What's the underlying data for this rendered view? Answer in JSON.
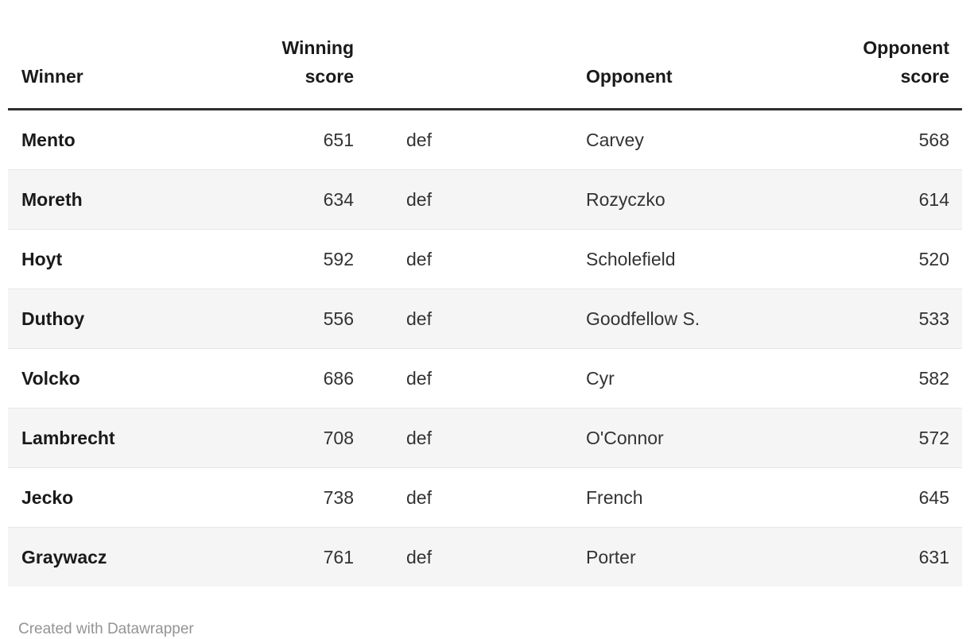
{
  "chart_data": {
    "type": "table",
    "title": "",
    "columns": [
      "Winner",
      "Winning score",
      "",
      "Opponent",
      "Opponent score"
    ],
    "rows": [
      [
        "Mento",
        651,
        "def",
        "Carvey",
        568
      ],
      [
        "Moreth",
        634,
        "def",
        "Rozyczko",
        614
      ],
      [
        "Hoyt",
        592,
        "def",
        "Scholefield",
        520
      ],
      [
        "Duthoy",
        556,
        "def",
        "Goodfellow S.",
        533
      ],
      [
        "Volcko",
        686,
        "def",
        "Cyr",
        582
      ],
      [
        "Lambrecht",
        708,
        "def",
        "O'Connor",
        572
      ],
      [
        "Jecko",
        738,
        "def",
        "French",
        645
      ],
      [
        "Graywacz",
        761,
        "def",
        "Porter",
        631
      ]
    ],
    "layout_hints": {
      "zebra_striping": true,
      "striped_rows": "even (2nd, 4th, 6th, 8th)",
      "header_rule": "3px dark",
      "alignment": [
        "left",
        "right",
        "left",
        "left",
        "right"
      ]
    }
  },
  "table": {
    "headers": {
      "winner": "Winner",
      "winning_score": "Winning score",
      "def": "",
      "opponent": "Opponent",
      "opponent_score": "Opponent score"
    },
    "rows": [
      {
        "winner": "Mento",
        "winning_score": "651",
        "def": "def",
        "opponent": "Carvey",
        "opponent_score": "568"
      },
      {
        "winner": "Moreth",
        "winning_score": "634",
        "def": "def",
        "opponent": "Rozyczko",
        "opponent_score": "614"
      },
      {
        "winner": "Hoyt",
        "winning_score": "592",
        "def": "def",
        "opponent": "Scholefield",
        "opponent_score": "520"
      },
      {
        "winner": "Duthoy",
        "winning_score": "556",
        "def": "def",
        "opponent": "Goodfellow S.",
        "opponent_score": "533"
      },
      {
        "winner": "Volcko",
        "winning_score": "686",
        "def": "def",
        "opponent": "Cyr",
        "opponent_score": "582"
      },
      {
        "winner": "Lambrecht",
        "winning_score": "708",
        "def": "def",
        "opponent": "O'Connor",
        "opponent_score": "572"
      },
      {
        "winner": "Jecko",
        "winning_score": "738",
        "def": "def",
        "opponent": "French",
        "opponent_score": "645"
      },
      {
        "winner": "Graywacz",
        "winning_score": "761",
        "def": "def",
        "opponent": "Porter",
        "opponent_score": "631"
      }
    ]
  },
  "footer": {
    "attribution": "Created with Datawrapper"
  },
  "colors": {
    "background": "#ffffff",
    "header_text": "#1a1a1a",
    "header_rule": "#2e2e2e",
    "body_text": "#333333",
    "winner_text": "#1a1a1a",
    "row_stripe": "#f5f5f5",
    "row_divider": "#e6e6e6",
    "footer_text": "#949494"
  }
}
